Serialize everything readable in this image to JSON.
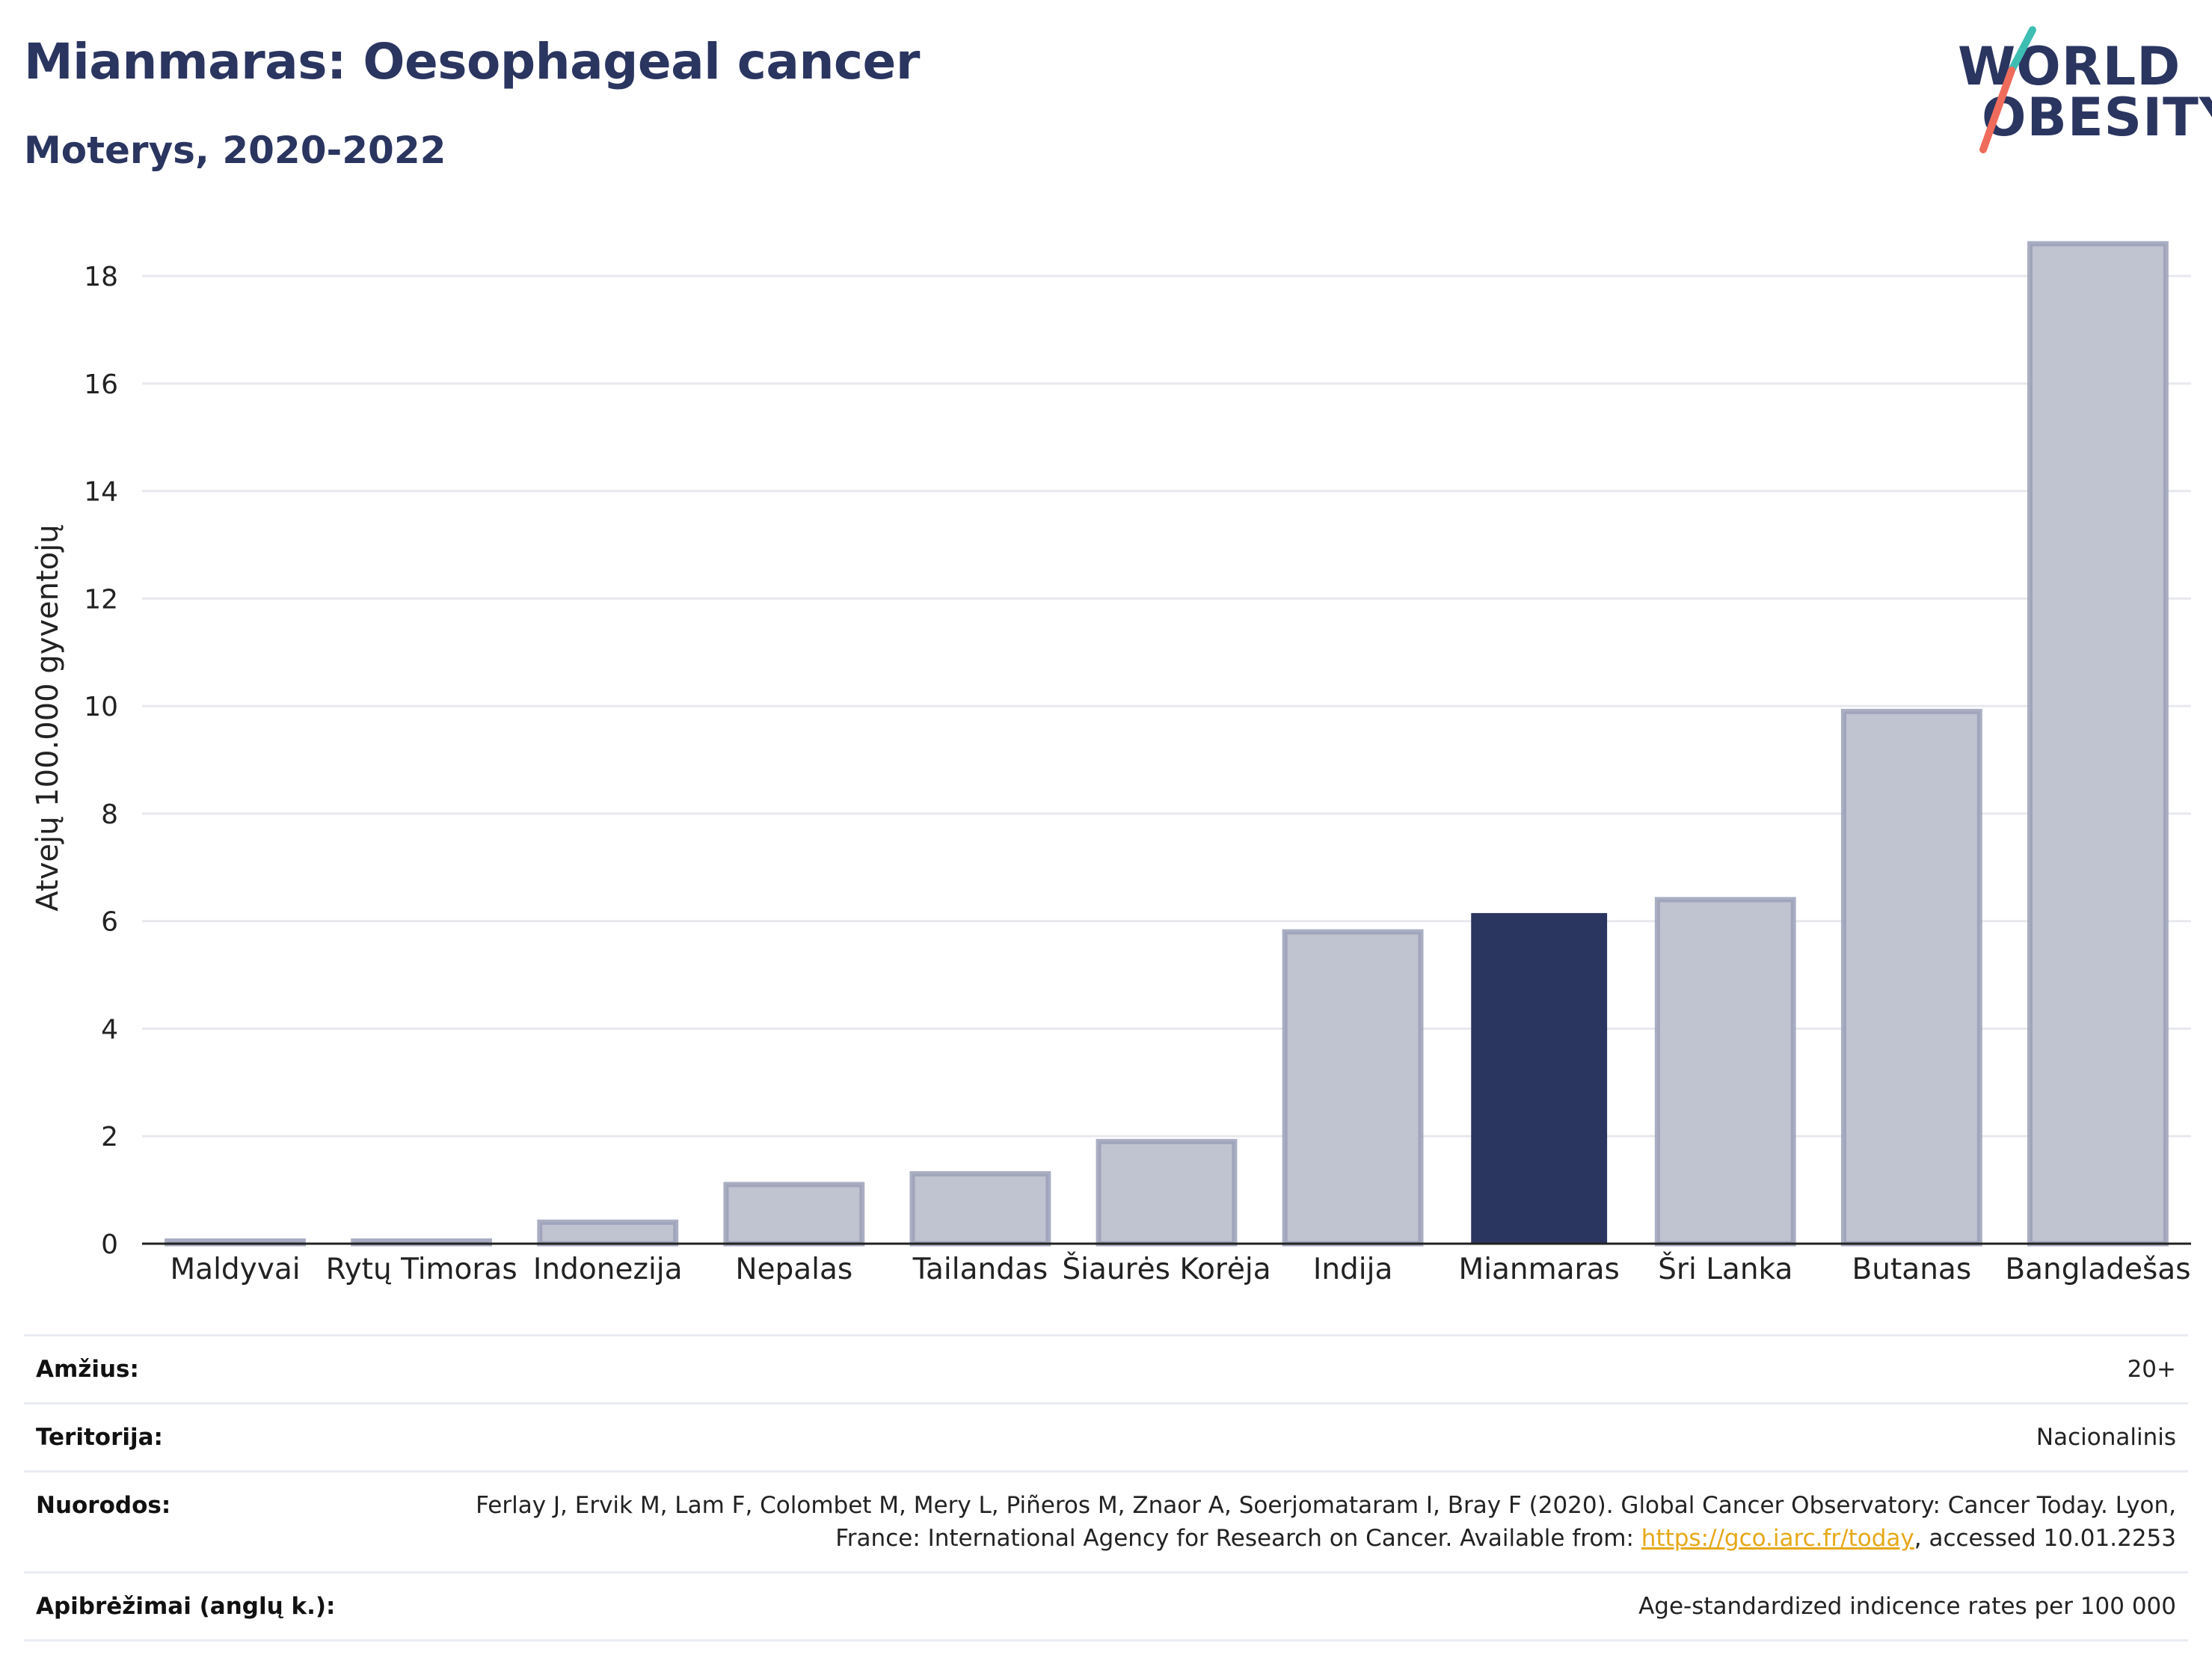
{
  "header": {
    "title": "Mianmaras: Oesophageal cancer",
    "subtitle": "Moterys, 2020-2022"
  },
  "logo": {
    "line1": "WORLD",
    "line2": "OBESITY",
    "slash_colors": [
      "#3ebdb3",
      "#ef6c5c"
    ]
  },
  "chart_data": {
    "type": "bar",
    "title": "Mianmaras: Oesophageal cancer",
    "subtitle": "Moterys, 2020-2022",
    "ylabel": "Atvejų 100.000 gyventojų",
    "xlabel": "",
    "ylim": [
      0,
      19.1
    ],
    "yticks": [
      0,
      2,
      4,
      6,
      8,
      10,
      12,
      14,
      16,
      18
    ],
    "grid": true,
    "categories": [
      "Maldyvai",
      "Rytų Timoras",
      "Indonezija",
      "Nepalas",
      "Tailandas",
      "Šiaurės Korėja",
      "Indija",
      "Mianmaras",
      "Šri Lanka",
      "Butanas",
      "Bangladešas"
    ],
    "values": [
      0.05,
      0.05,
      0.4,
      1.1,
      1.3,
      1.9,
      5.8,
      6.15,
      6.4,
      9.9,
      18.6
    ],
    "highlight": "Mianmaras",
    "colors": {
      "bar": "#c0c3d0",
      "bar_border": "#9aa0b8",
      "highlight": "#2a3560",
      "grid": "#e8e9ee",
      "axis": "#222222"
    }
  },
  "meta": {
    "age_label": "Amžius:",
    "age_value": "20+",
    "territory_label": "Teritorija:",
    "territory_value": "Nacionalinis",
    "refs_label": "Nuorodos:",
    "refs_text": "Ferlay J, Ervik M, Lam F, Colombet M, Mery L, Piñeros M, Znaor A, Soerjomataram I, Bray F (2020). Global Cancer Observatory: Cancer Today. Lyon, France: International Agency for Research on Cancer. Available from: ",
    "refs_link": "https://gco.iarc.fr/today",
    "refs_tail": ", accessed 10.01.2253",
    "defs_label": "Apibrėžimai (anglų k.):",
    "defs_value": "Age-standardized indicence rates per 100 000"
  }
}
